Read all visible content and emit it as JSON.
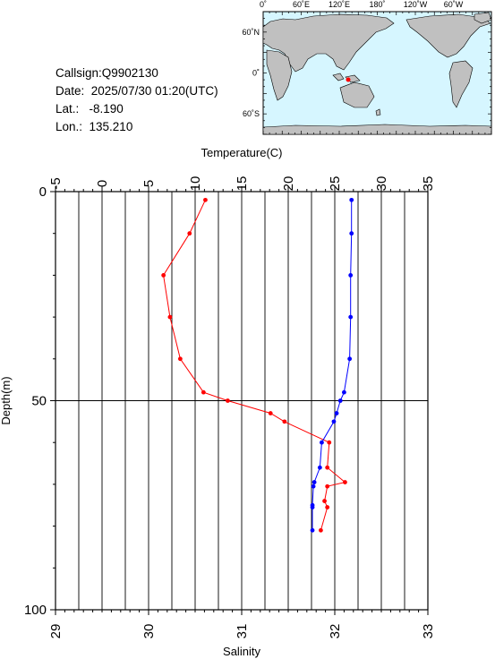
{
  "station": {
    "callsign": "Callsign:Q9902130",
    "date": "Date:  2025/07/30 01:20(UTC)",
    "lat": "Lat.:   -8.190",
    "lon": "Lon.:  135.210"
  },
  "map": {
    "top_labels": [
      "0˚",
      "60˚E",
      "120˚E",
      "180˚",
      "120˚W",
      "60˚W"
    ],
    "left_labels": [
      "60˚N",
      "0˚",
      "60˚S"
    ],
    "ocean_color": "#d6f6ff",
    "land_color": "#c0c0c0",
    "marker_color": "#ff0000"
  },
  "chart_data": {
    "type": "line",
    "top_axis": {
      "label": "Temperature(C)",
      "range": [
        -5,
        35
      ],
      "ticks": [
        "-5",
        "0",
        "5",
        "10",
        "15",
        "20",
        "25",
        "30",
        "35"
      ]
    },
    "bottom_axis": {
      "label": "Salinity",
      "range": [
        29,
        33
      ],
      "ticks": [
        "29",
        "30",
        "31",
        "32",
        "33"
      ]
    },
    "y_axis": {
      "label": "Depth(m)",
      "range": [
        0,
        100
      ],
      "inverted": true,
      "ticks": [
        "0",
        "50",
        "100"
      ]
    },
    "grid": true,
    "series": [
      {
        "color": "#ff0000",
        "axis": "temperature",
        "points": [
          [
            11.1,
            2
          ],
          [
            9.4,
            10
          ],
          [
            6.6,
            20
          ],
          [
            7.3,
            30
          ],
          [
            8.4,
            40
          ],
          [
            10.9,
            48
          ],
          [
            13.5,
            50
          ],
          [
            18.1,
            53
          ],
          [
            19.6,
            55
          ],
          [
            24.4,
            60
          ],
          [
            24.2,
            66
          ],
          [
            26.1,
            69.5
          ],
          [
            24.2,
            70.5
          ],
          [
            23.9,
            74
          ],
          [
            24.2,
            75.5
          ],
          [
            23.5,
            81
          ]
        ]
      },
      {
        "color": "#0000ff",
        "axis": "salinity",
        "points": [
          [
            32.18,
            2
          ],
          [
            32.18,
            10
          ],
          [
            32.17,
            20
          ],
          [
            32.17,
            30
          ],
          [
            32.16,
            40
          ],
          [
            32.1,
            48
          ],
          [
            32.06,
            50
          ],
          [
            32.02,
            53
          ],
          [
            31.99,
            55
          ],
          [
            31.86,
            60
          ],
          [
            31.84,
            66
          ],
          [
            31.78,
            69.5
          ],
          [
            31.77,
            70.5
          ],
          [
            31.76,
            75
          ],
          [
            31.76,
            75.5
          ],
          [
            31.76,
            81
          ]
        ]
      }
    ]
  }
}
